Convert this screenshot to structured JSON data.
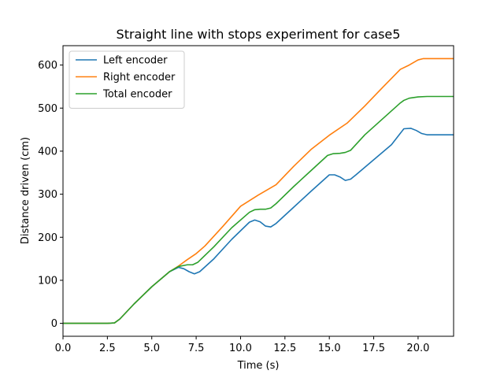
{
  "chart_data": {
    "type": "line",
    "title": "Straight line with stops experiment for case5",
    "xlabel": "Time (s)",
    "ylabel": "Distance driven (cm)",
    "xlim": [
      0,
      22
    ],
    "ylim": [
      -30,
      645
    ],
    "xticks": [
      0,
      2.5,
      5,
      7.5,
      10,
      12.5,
      15,
      17.5,
      20
    ],
    "xtick_labels": [
      "0.0",
      "2.5",
      "5.0",
      "7.5",
      "10.0",
      "12.5",
      "15.0",
      "17.5",
      "20.0"
    ],
    "yticks": [
      0,
      100,
      200,
      300,
      400,
      500,
      600
    ],
    "ytick_labels": [
      "0",
      "100",
      "200",
      "300",
      "400",
      "500",
      "600"
    ],
    "grid": false,
    "legend_position": "top-left",
    "series": [
      {
        "name": "Left encoder",
        "color": "#1f77b4",
        "x": [
          0,
          2.5,
          2.9,
          3.2,
          4.0,
          5.0,
          6.0,
          6.5,
          6.8,
          7.1,
          7.4,
          7.7,
          8.5,
          9.5,
          10.5,
          10.8,
          11.1,
          11.4,
          11.7,
          12.0,
          13.0,
          14.0,
          15.0,
          15.3,
          15.6,
          15.9,
          16.2,
          16.5,
          17.5,
          18.5,
          19.2,
          19.6,
          19.9,
          20.2,
          20.5,
          22.0
        ],
        "y": [
          0,
          0,
          1,
          10,
          45,
          85,
          120,
          130,
          127,
          120,
          115,
          120,
          150,
          195,
          235,
          240,
          236,
          226,
          224,
          232,
          270,
          308,
          345,
          345,
          340,
          332,
          335,
          345,
          380,
          415,
          452,
          453,
          448,
          441,
          438,
          438
        ]
      },
      {
        "name": "Right encoder",
        "color": "#ff7f0e",
        "x": [
          0,
          2.5,
          2.9,
          3.2,
          4.0,
          5.0,
          6.0,
          6.5,
          7.0,
          7.5,
          8.0,
          9.0,
          10.0,
          11.0,
          12.0,
          13.0,
          14.0,
          15.0,
          16.0,
          17.0,
          18.0,
          19.0,
          19.5,
          20.0,
          20.3,
          22.0
        ],
        "y": [
          0,
          0,
          1,
          10,
          45,
          85,
          120,
          133,
          148,
          162,
          180,
          225,
          272,
          298,
          322,
          365,
          405,
          437,
          465,
          505,
          548,
          590,
          600,
          612,
          615,
          615
        ]
      },
      {
        "name": "Total encoder",
        "color": "#2ca02c",
        "x": [
          0,
          2.5,
          2.9,
          3.2,
          4.0,
          5.0,
          6.0,
          6.5,
          7.0,
          7.3,
          7.6,
          8.5,
          9.5,
          10.5,
          10.8,
          11.1,
          11.4,
          11.7,
          12.0,
          13.0,
          14.0,
          14.9,
          15.2,
          15.6,
          15.9,
          16.2,
          17.0,
          18.0,
          19.0,
          19.2,
          19.5,
          20.0,
          20.5,
          22.0
        ],
        "y": [
          0,
          0,
          1,
          10,
          45,
          85,
          120,
          132,
          136,
          136,
          142,
          178,
          222,
          258,
          264,
          265,
          265,
          268,
          278,
          318,
          356,
          390,
          394,
          395,
          397,
          402,
          438,
          475,
          512,
          518,
          523,
          526,
          527,
          527
        ]
      }
    ]
  }
}
